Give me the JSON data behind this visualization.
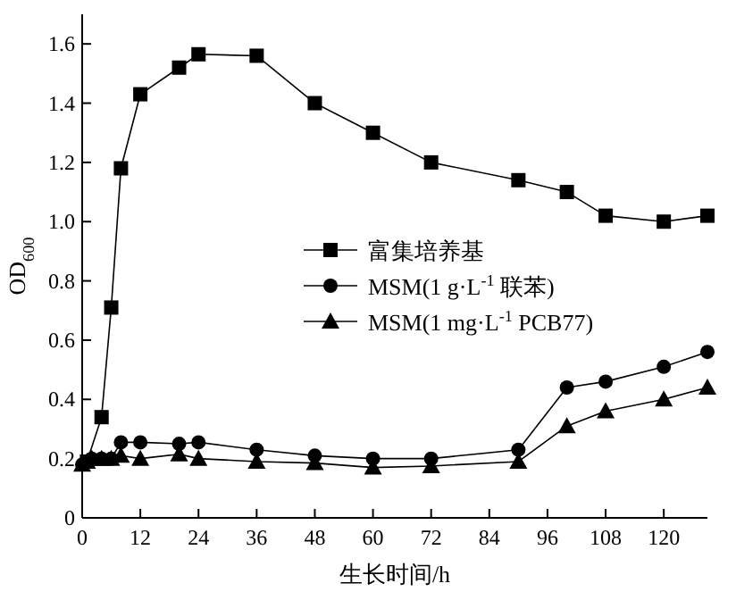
{
  "chart_data": {
    "type": "line",
    "xlabel": "生长时间/h",
    "ylabel": "OD$_{600}$",
    "xlim": [
      0,
      129
    ],
    "ylim": [
      0,
      1.7
    ],
    "xticks": [
      0,
      12,
      24,
      36,
      48,
      60,
      72,
      84,
      96,
      108,
      120
    ],
    "yticks": [
      0,
      0.2,
      0.4,
      0.6,
      0.8,
      {
        "value": 1,
        "label": "1.0"
      },
      1.2,
      1.4,
      1.6
    ],
    "legend": "right",
    "grid": false,
    "line_style": "solid",
    "x": [
      0,
      1,
      2,
      4,
      6,
      8,
      12,
      20,
      24,
      36,
      48,
      60,
      72,
      90,
      100,
      108,
      120,
      129
    ],
    "series": [
      {
        "name": "富集培养基",
        "color": "#000000",
        "marker": "square",
        "values": [
          null,
          0.19,
          null,
          0.34,
          0.71,
          1.18,
          1.43,
          1.52,
          1.565,
          1.56,
          1.4,
          1.3,
          1.2,
          1.14,
          1.1,
          1.02,
          1.0,
          1.02
        ]
      },
      {
        "name": "MSM(1 g·L$^{-1}$ 联苯)",
        "color": "#000000",
        "marker": "circle",
        "values": [
          0.18,
          0.19,
          0.2,
          0.2,
          0.2,
          0.255,
          0.255,
          0.25,
          0.255,
          0.23,
          0.21,
          0.2,
          0.2,
          0.23,
          0.44,
          0.46,
          0.51,
          0.56
        ]
      },
      {
        "name": "MSM(1 mg·L$^{-1}$ PCB77)",
        "color": "#000000",
        "marker": "triangle",
        "values": [
          0.18,
          0.19,
          0.2,
          0.2,
          0.2,
          0.21,
          0.2,
          0.215,
          0.2,
          0.19,
          0.185,
          0.17,
          0.175,
          0.19,
          0.31,
          0.36,
          0.4,
          0.44
        ]
      }
    ]
  }
}
